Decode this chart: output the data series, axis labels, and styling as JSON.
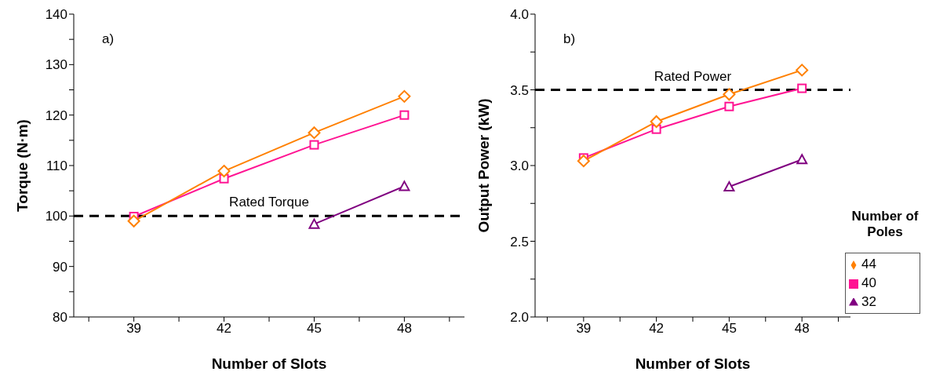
{
  "chart_data": [
    {
      "type": "line",
      "xlabel": "Number of Slots",
      "ylabel": "Torque (N·m)",
      "annotations": [
        "a)"
      ],
      "xlim": [
        37,
        50
      ],
      "xticks": [
        {
          "value": 37.5,
          "label": null
        },
        39,
        {
          "value": 40.5,
          "label": null
        },
        42,
        {
          "value": 43.5,
          "label": null
        },
        45,
        {
          "value": 46.5,
          "label": null
        },
        48,
        {
          "value": 49.5,
          "label": null
        }
      ],
      "ylim": [
        80,
        140
      ],
      "yticks": [
        80,
        {
          "value": 85,
          "label": null
        },
        90,
        {
          "value": 95,
          "label": null
        },
        100,
        {
          "value": 105,
          "label": null
        },
        110,
        {
          "value": 115,
          "label": null
        },
        120,
        {
          "value": 125,
          "label": null
        },
        130,
        {
          "value": 135,
          "label": null
        },
        140
      ],
      "grid": false,
      "legend": false,
      "line_style": "solid",
      "ref_lines": [
        {
          "axis": "y",
          "value": 100,
          "label": "Rated Torque",
          "color": "#000000",
          "line_style": "dashed"
        }
      ],
      "series": [
        {
          "color": "#ff8000",
          "marker": "diamond",
          "x": [
            39,
            42,
            45,
            48
          ],
          "values": [
            99.0,
            108.9,
            116.5,
            123.7
          ]
        },
        {
          "color": "#ff1493",
          "marker": "square",
          "x": [
            39,
            42,
            45,
            48
          ],
          "values": [
            99.9,
            107.4,
            114.1,
            120.0
          ]
        },
        {
          "color": "#800080",
          "marker": "triangle",
          "x": [
            45,
            48
          ],
          "values": [
            98.4,
            105.9
          ]
        }
      ]
    },
    {
      "type": "line",
      "xlabel": "Number of Slots",
      "ylabel": "Output Power (kW)",
      "annotations": [
        "b)"
      ],
      "legend_title": "Number of Poles",
      "xlim": [
        37,
        50
      ],
      "xticks": [
        {
          "value": 37.5,
          "label": null
        },
        39,
        {
          "value": 40.5,
          "label": null
        },
        42,
        {
          "value": 43.5,
          "label": null
        },
        45,
        {
          "value": 46.5,
          "label": null
        },
        48,
        {
          "value": 49.5,
          "label": null
        }
      ],
      "ylim": [
        2.0,
        4.0
      ],
      "yticks": [
        {
          "value": 2.0,
          "label": "2.0"
        },
        {
          "value": 2.25,
          "label": null
        },
        2.5,
        {
          "value": 2.75,
          "label": null
        },
        {
          "value": 3.0,
          "label": "3.0"
        },
        {
          "value": 3.25,
          "label": null
        },
        3.5,
        {
          "value": 3.75,
          "label": null
        },
        {
          "value": 4.0,
          "label": "4.0"
        }
      ],
      "grid": false,
      "legend": "bottom right",
      "line_style": "solid",
      "ref_lines": [
        {
          "axis": "y",
          "value": 3.5,
          "label": "Rated Power",
          "color": "#000000",
          "line_style": "dashed"
        }
      ],
      "series": [
        {
          "name": "44",
          "color": "#ff8000",
          "marker": "diamond",
          "x": [
            39,
            42,
            45,
            48
          ],
          "values": [
            3.03,
            3.29,
            3.47,
            3.63
          ]
        },
        {
          "name": "40",
          "color": "#ff1493",
          "marker": "square",
          "x": [
            39,
            42,
            45,
            48
          ],
          "values": [
            3.05,
            3.24,
            3.39,
            3.51
          ]
        },
        {
          "name": "32",
          "color": "#800080",
          "marker": "triangle",
          "x": [
            45,
            48
          ],
          "values": [
            2.86,
            3.04
          ]
        }
      ]
    }
  ]
}
